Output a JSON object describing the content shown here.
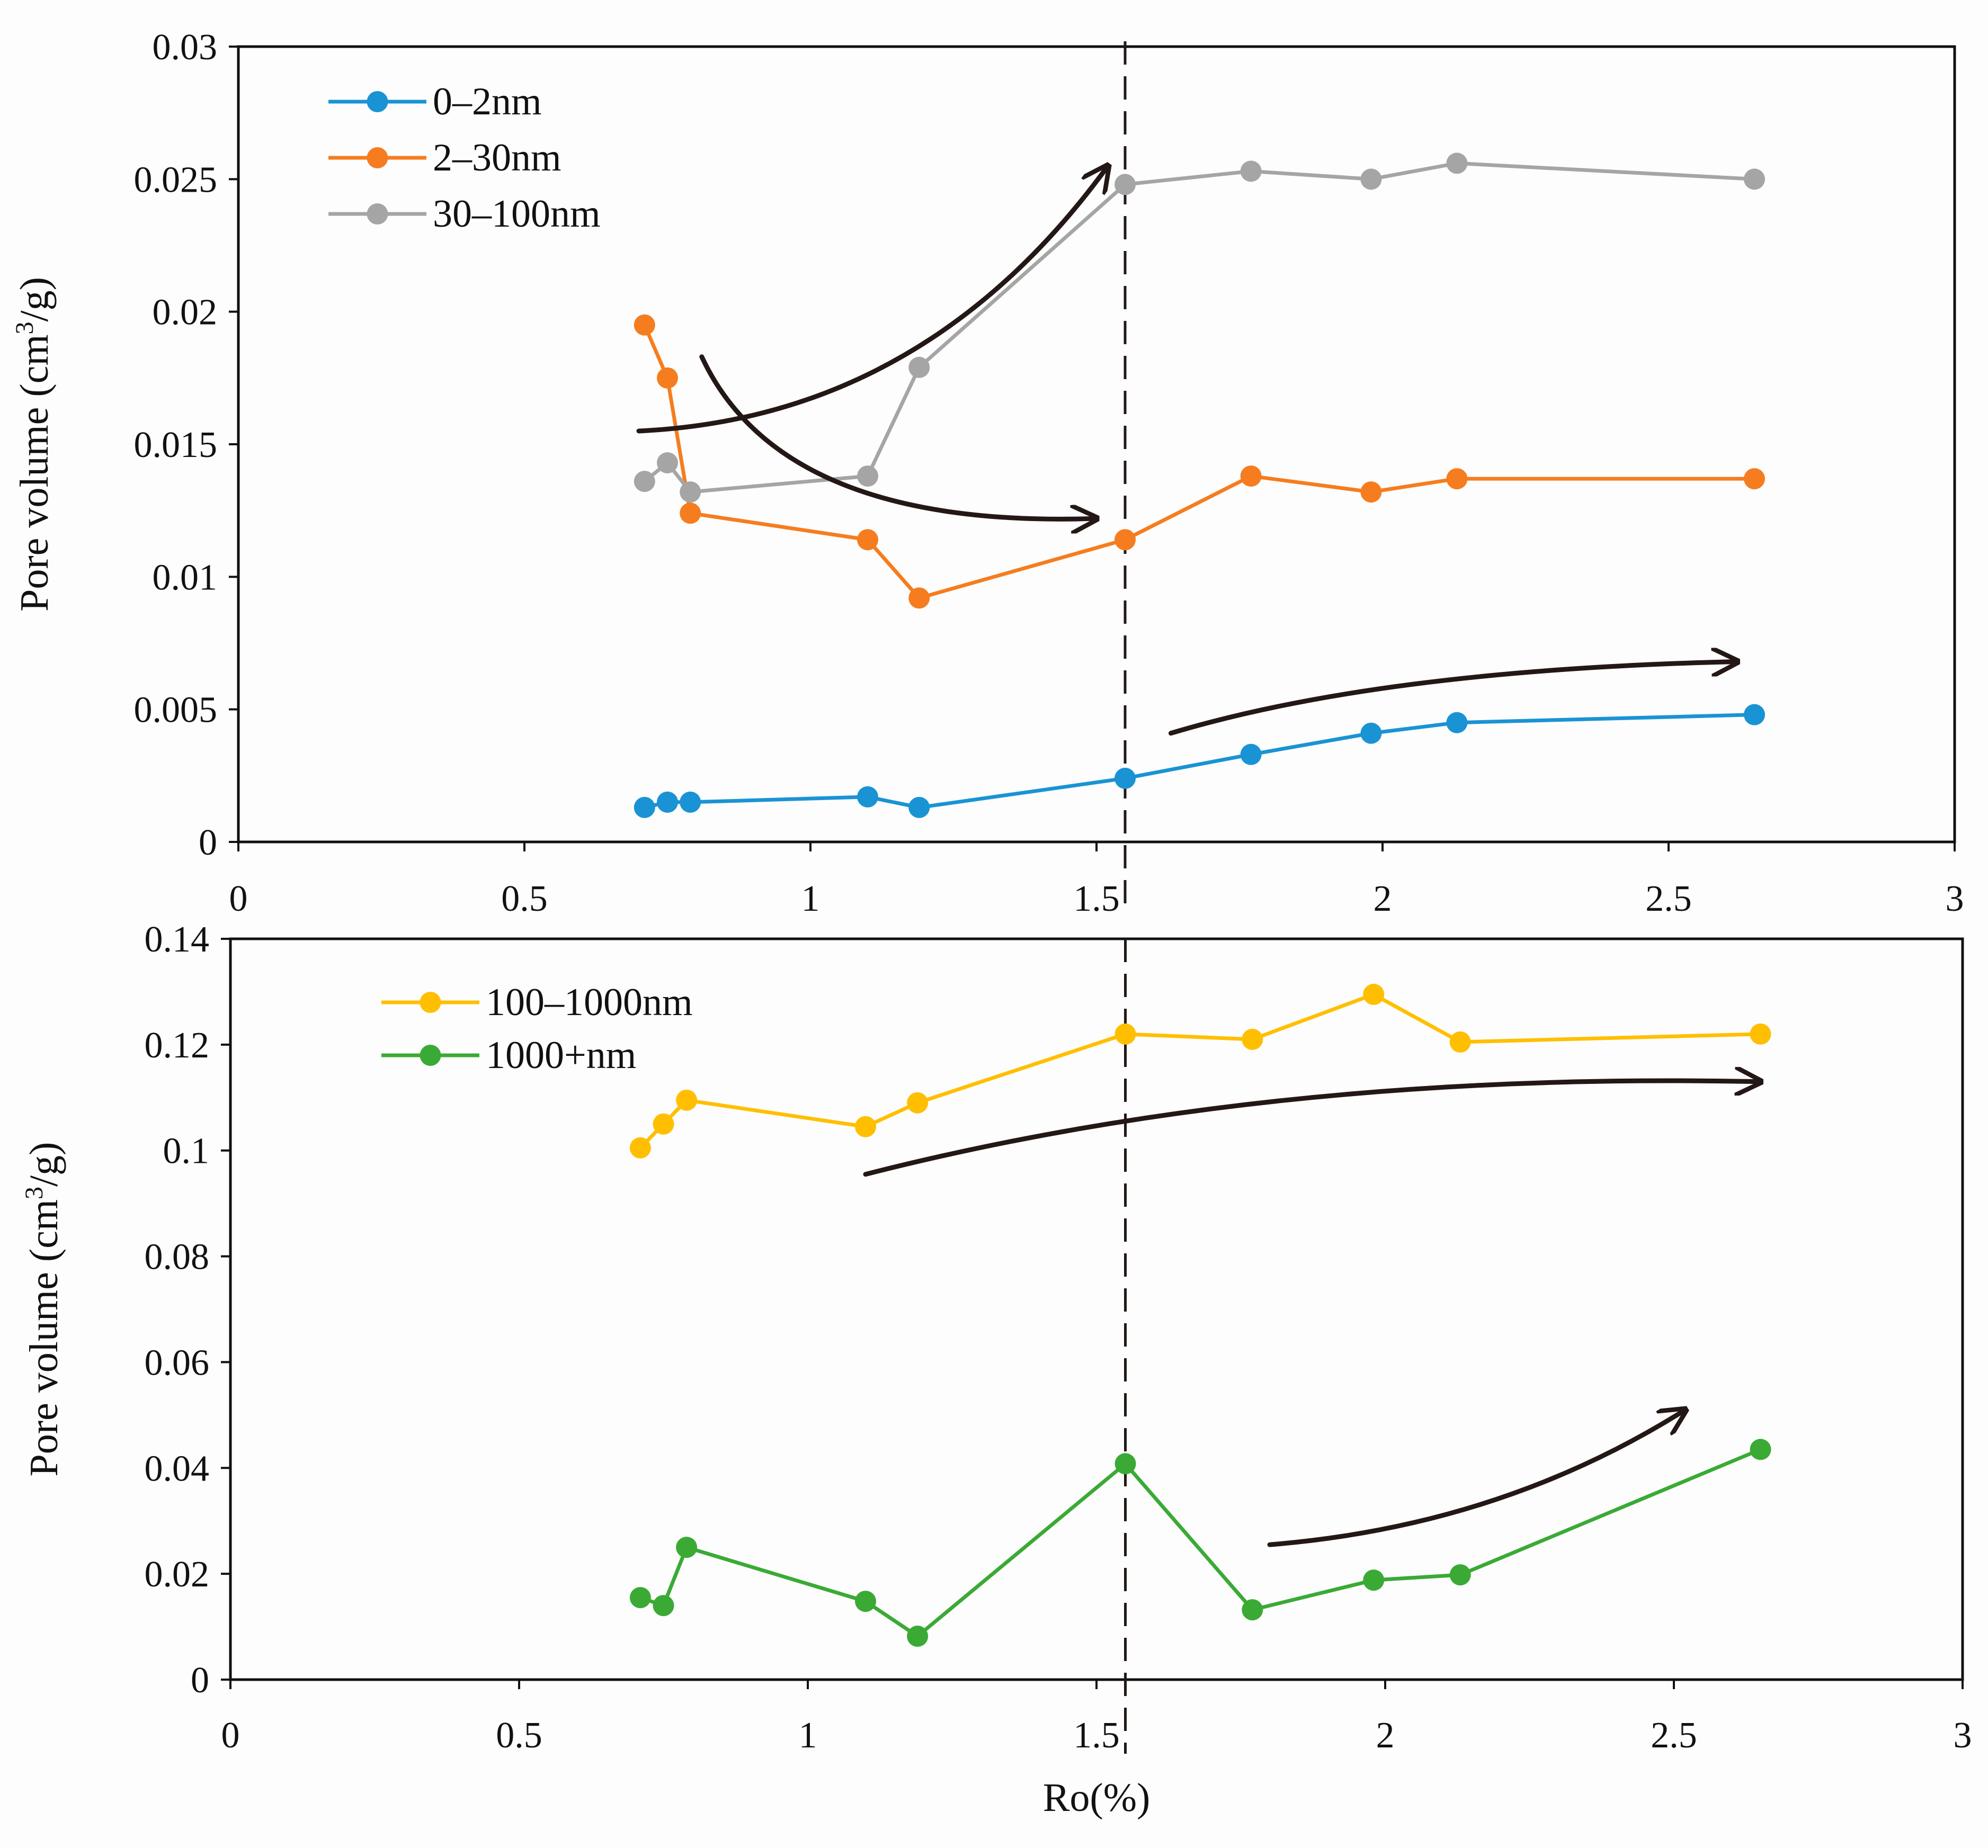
{
  "chart_data": [
    {
      "type": "line",
      "panel": "top",
      "xlabel": "",
      "ylabel_parts": [
        "Pore volume (cm",
        "3",
        "/g)"
      ],
      "xlim": [
        0,
        3
      ],
      "ylim": [
        0,
        0.03
      ],
      "xticks": [
        "0",
        "0.5",
        "1",
        "1.5",
        "2",
        "2.5",
        "3"
      ],
      "yticks": [
        "0",
        "0.005",
        "0.01",
        "0.015",
        "0.02",
        "0.025",
        "0.03"
      ],
      "legend_position": "top-left",
      "divider_x": 1.55,
      "series": [
        {
          "name": "0–2nm",
          "color": "#1a93d4",
          "x": [
            0.71,
            0.75,
            0.79,
            1.1,
            1.19,
            1.55,
            1.77,
            1.98,
            2.13,
            2.65
          ],
          "y": [
            0.0013,
            0.0015,
            0.0015,
            0.0017,
            0.0013,
            0.0024,
            0.0033,
            0.0041,
            0.0045,
            0.0048
          ]
        },
        {
          "name": "2–30nm",
          "color": "#f57d1f",
          "x": [
            0.71,
            0.75,
            0.79,
            1.1,
            1.19,
            1.55,
            1.77,
            1.98,
            2.13,
            2.65
          ],
          "y": [
            0.0195,
            0.0175,
            0.0124,
            0.0114,
            0.0092,
            0.0114,
            0.0138,
            0.0132,
            0.0137,
            0.0137
          ]
        },
        {
          "name": "30–100nm",
          "color": "#a5a5a5",
          "x": [
            0.71,
            0.75,
            0.79,
            1.1,
            1.19,
            1.55,
            1.77,
            1.98,
            2.13,
            2.65
          ],
          "y": [
            0.0136,
            0.0143,
            0.0132,
            0.0138,
            0.0179,
            0.0248,
            0.0253,
            0.025,
            0.0256,
            0.025
          ]
        }
      ],
      "trend_arrows": [
        {
          "from": [
            0.7,
            0.0155
          ],
          "ctrl": [
            1.2,
            0.016
          ],
          "to": [
            1.52,
            0.0255
          ]
        },
        {
          "from": [
            0.81,
            0.0183
          ],
          "ctrl": [
            0.95,
            0.0118
          ],
          "to": [
            1.5,
            0.0122
          ]
        },
        {
          "from": [
            1.63,
            0.0041
          ],
          "ctrl": [
            2.0,
            0.0065
          ],
          "to": [
            2.62,
            0.0068
          ]
        }
      ]
    },
    {
      "type": "line",
      "panel": "bottom",
      "xlabel": "Ro(%)",
      "ylabel_parts": [
        "Pore volume (cm",
        "3",
        "/g)"
      ],
      "xlim": [
        0,
        3
      ],
      "ylim": [
        0,
        0.14
      ],
      "xticks": [
        "0",
        "0.5",
        "1",
        "1.5",
        "2",
        "2.5",
        "3"
      ],
      "yticks": [
        "0",
        "0.02",
        "0.04",
        "0.06",
        "0.08",
        "0.1",
        "0.12",
        "0.14"
      ],
      "legend_position": "top-left",
      "divider_x": 1.55,
      "series": [
        {
          "name": "100–1000nm",
          "color": "#ffbf00",
          "x": [
            0.71,
            0.75,
            0.79,
            1.1,
            1.19,
            1.55,
            1.77,
            1.98,
            2.13,
            2.65
          ],
          "y": [
            0.1005,
            0.105,
            0.1095,
            0.1045,
            0.109,
            0.122,
            0.121,
            0.1295,
            0.1205,
            0.122
          ]
        },
        {
          "name": "1000+nm",
          "color": "#3aaa35",
          "x": [
            0.71,
            0.75,
            0.79,
            1.1,
            1.19,
            1.55,
            1.77,
            1.98,
            2.13,
            2.65
          ],
          "y": [
            0.0155,
            0.014,
            0.025,
            0.0148,
            0.0082,
            0.0408,
            0.0132,
            0.0188,
            0.0198,
            0.0435
          ]
        }
      ],
      "trend_arrows": [
        {
          "from": [
            1.1,
            0.0955
          ],
          "ctrl": [
            1.8,
            0.115
          ],
          "to": [
            2.65,
            0.113
          ]
        },
        {
          "from": [
            1.8,
            0.0255
          ],
          "ctrl": [
            2.2,
            0.029
          ],
          "to": [
            2.52,
            0.051
          ]
        }
      ]
    }
  ]
}
